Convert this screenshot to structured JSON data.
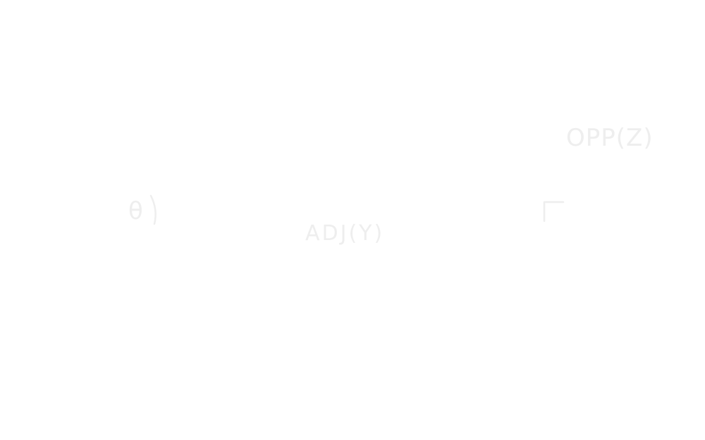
{
  "diagram": {
    "angle_label": "θ",
    "adjacent_label": "ADJ(Y)",
    "opposite_label": "OPP(Z)"
  },
  "colors": {
    "background": "#ffffff",
    "ink": "#eeeeee"
  }
}
